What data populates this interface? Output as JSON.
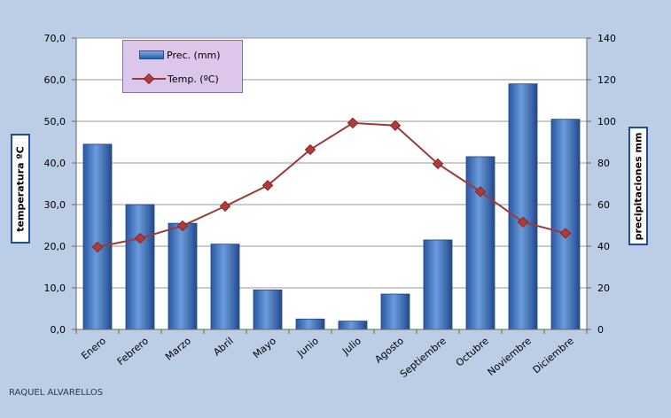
{
  "author": "RAQUEL ALVARELLOS",
  "colors": {
    "background": "#bccee6",
    "bar": "#3f74c2",
    "line": "#9e3a3a",
    "grid": "#999999"
  },
  "chart_data": {
    "type": "bar",
    "categories": [
      "Enero",
      "Febrero",
      "Marzo",
      "Abril",
      "Mayo",
      "Junio",
      "Julio",
      "Agosto",
      "Septiembre",
      "Octubre",
      "Noviembre",
      "Diciembre"
    ],
    "series": [
      {
        "name": "Prec. (mm)",
        "type": "bar",
        "axis": "right",
        "values": [
          89,
          60,
          51,
          41,
          19,
          5,
          4,
          17,
          43,
          83,
          118,
          101
        ]
      },
      {
        "name": "Temp. (ºC)",
        "type": "line",
        "axis": "left",
        "values": [
          19.8,
          21.9,
          24.9,
          29.6,
          34.6,
          43.2,
          49.6,
          49.0,
          39.8,
          33.1,
          25.8,
          23.1
        ]
      }
    ],
    "ylabel_left": "temperatura ºC",
    "ylabel_right": "precipitaciones mm",
    "ylim_left": [
      0,
      70
    ],
    "yticks_left": [
      "0,0",
      "10,0",
      "20,0",
      "30,0",
      "40,0",
      "50,0",
      "60,0",
      "70,0"
    ],
    "ylim_right": [
      0,
      140
    ],
    "yticks_right": [
      "0",
      "20",
      "40",
      "60",
      "80",
      "100",
      "120",
      "140"
    ],
    "grid": true,
    "legend": "top-left"
  }
}
